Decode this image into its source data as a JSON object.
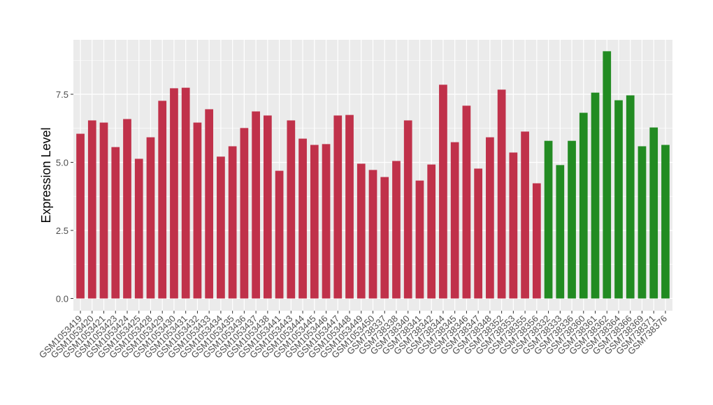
{
  "chart_data": {
    "type": "bar",
    "y_label": "Expression Level",
    "categories": [
      "GSM1053419",
      "GSM1053420",
      "GSM1053421",
      "GSM1053423",
      "GSM1053424",
      "GSM1053425",
      "GSM1053428",
      "GSM1053429",
      "GSM1053430",
      "GSM1053431",
      "GSM1053432",
      "GSM1053433",
      "GSM1053434",
      "GSM1053435",
      "GSM1053436",
      "GSM1053437",
      "GSM1053438",
      "GSM1053441",
      "GSM1053443",
      "GSM1053444",
      "GSM1053445",
      "GSM1053446",
      "GSM1053447",
      "GSM1053448",
      "GSM1053449",
      "GSM1053450",
      "GSM738337",
      "GSM738338",
      "GSM738340",
      "GSM738341",
      "GSM738342",
      "GSM738344",
      "GSM738345",
      "GSM738346",
      "GSM738347",
      "GSM738348",
      "GSM738352",
      "GSM738353",
      "GSM738355",
      "GSM738356",
      "GSM738332",
      "GSM738333",
      "GSM738336",
      "GSM738360",
      "GSM738361",
      "GSM738362",
      "GSM738364",
      "GSM738366",
      "GSM738369",
      "GSM738371",
      "GSM738376"
    ],
    "values": [
      6.05,
      6.54,
      6.46,
      5.56,
      6.59,
      5.13,
      5.92,
      7.26,
      7.72,
      7.74,
      6.46,
      6.95,
      5.21,
      5.59,
      6.26,
      6.87,
      6.72,
      4.69,
      6.54,
      5.87,
      5.64,
      5.67,
      6.72,
      6.74,
      4.95,
      4.72,
      4.46,
      5.05,
      6.54,
      4.33,
      4.92,
      7.85,
      5.74,
      7.08,
      4.77,
      5.92,
      7.67,
      5.36,
      6.13,
      4.23,
      5.79,
      4.9,
      5.79,
      6.82,
      7.56,
      9.08,
      7.28,
      7.46,
      5.59,
      6.28,
      5.64
    ],
    "colors": [
      "#c0314a",
      "#c0314a",
      "#c0314a",
      "#c0314a",
      "#c0314a",
      "#c0314a",
      "#c0314a",
      "#c0314a",
      "#c0314a",
      "#c0314a",
      "#c0314a",
      "#c0314a",
      "#c0314a",
      "#c0314a",
      "#c0314a",
      "#c0314a",
      "#c0314a",
      "#c0314a",
      "#c0314a",
      "#c0314a",
      "#c0314a",
      "#c0314a",
      "#c0314a",
      "#c0314a",
      "#c0314a",
      "#c0314a",
      "#c0314a",
      "#c0314a",
      "#c0314a",
      "#c0314a",
      "#c0314a",
      "#c0314a",
      "#c0314a",
      "#c0314a",
      "#c0314a",
      "#c0314a",
      "#c0314a",
      "#c0314a",
      "#c0314a",
      "#c0314a",
      "#228b22",
      "#228b22",
      "#228b22",
      "#228b22",
      "#228b22",
      "#228b22",
      "#228b22",
      "#228b22",
      "#228b22",
      "#228b22",
      "#228b22"
    ],
    "ylim": [
      -0.45,
      9.5
    ],
    "yticks": [
      {
        "value": 0,
        "label": "0.0"
      },
      2.5,
      {
        "value": 5,
        "label": "5.0"
      },
      7.5
    ],
    "grid": true
  }
}
